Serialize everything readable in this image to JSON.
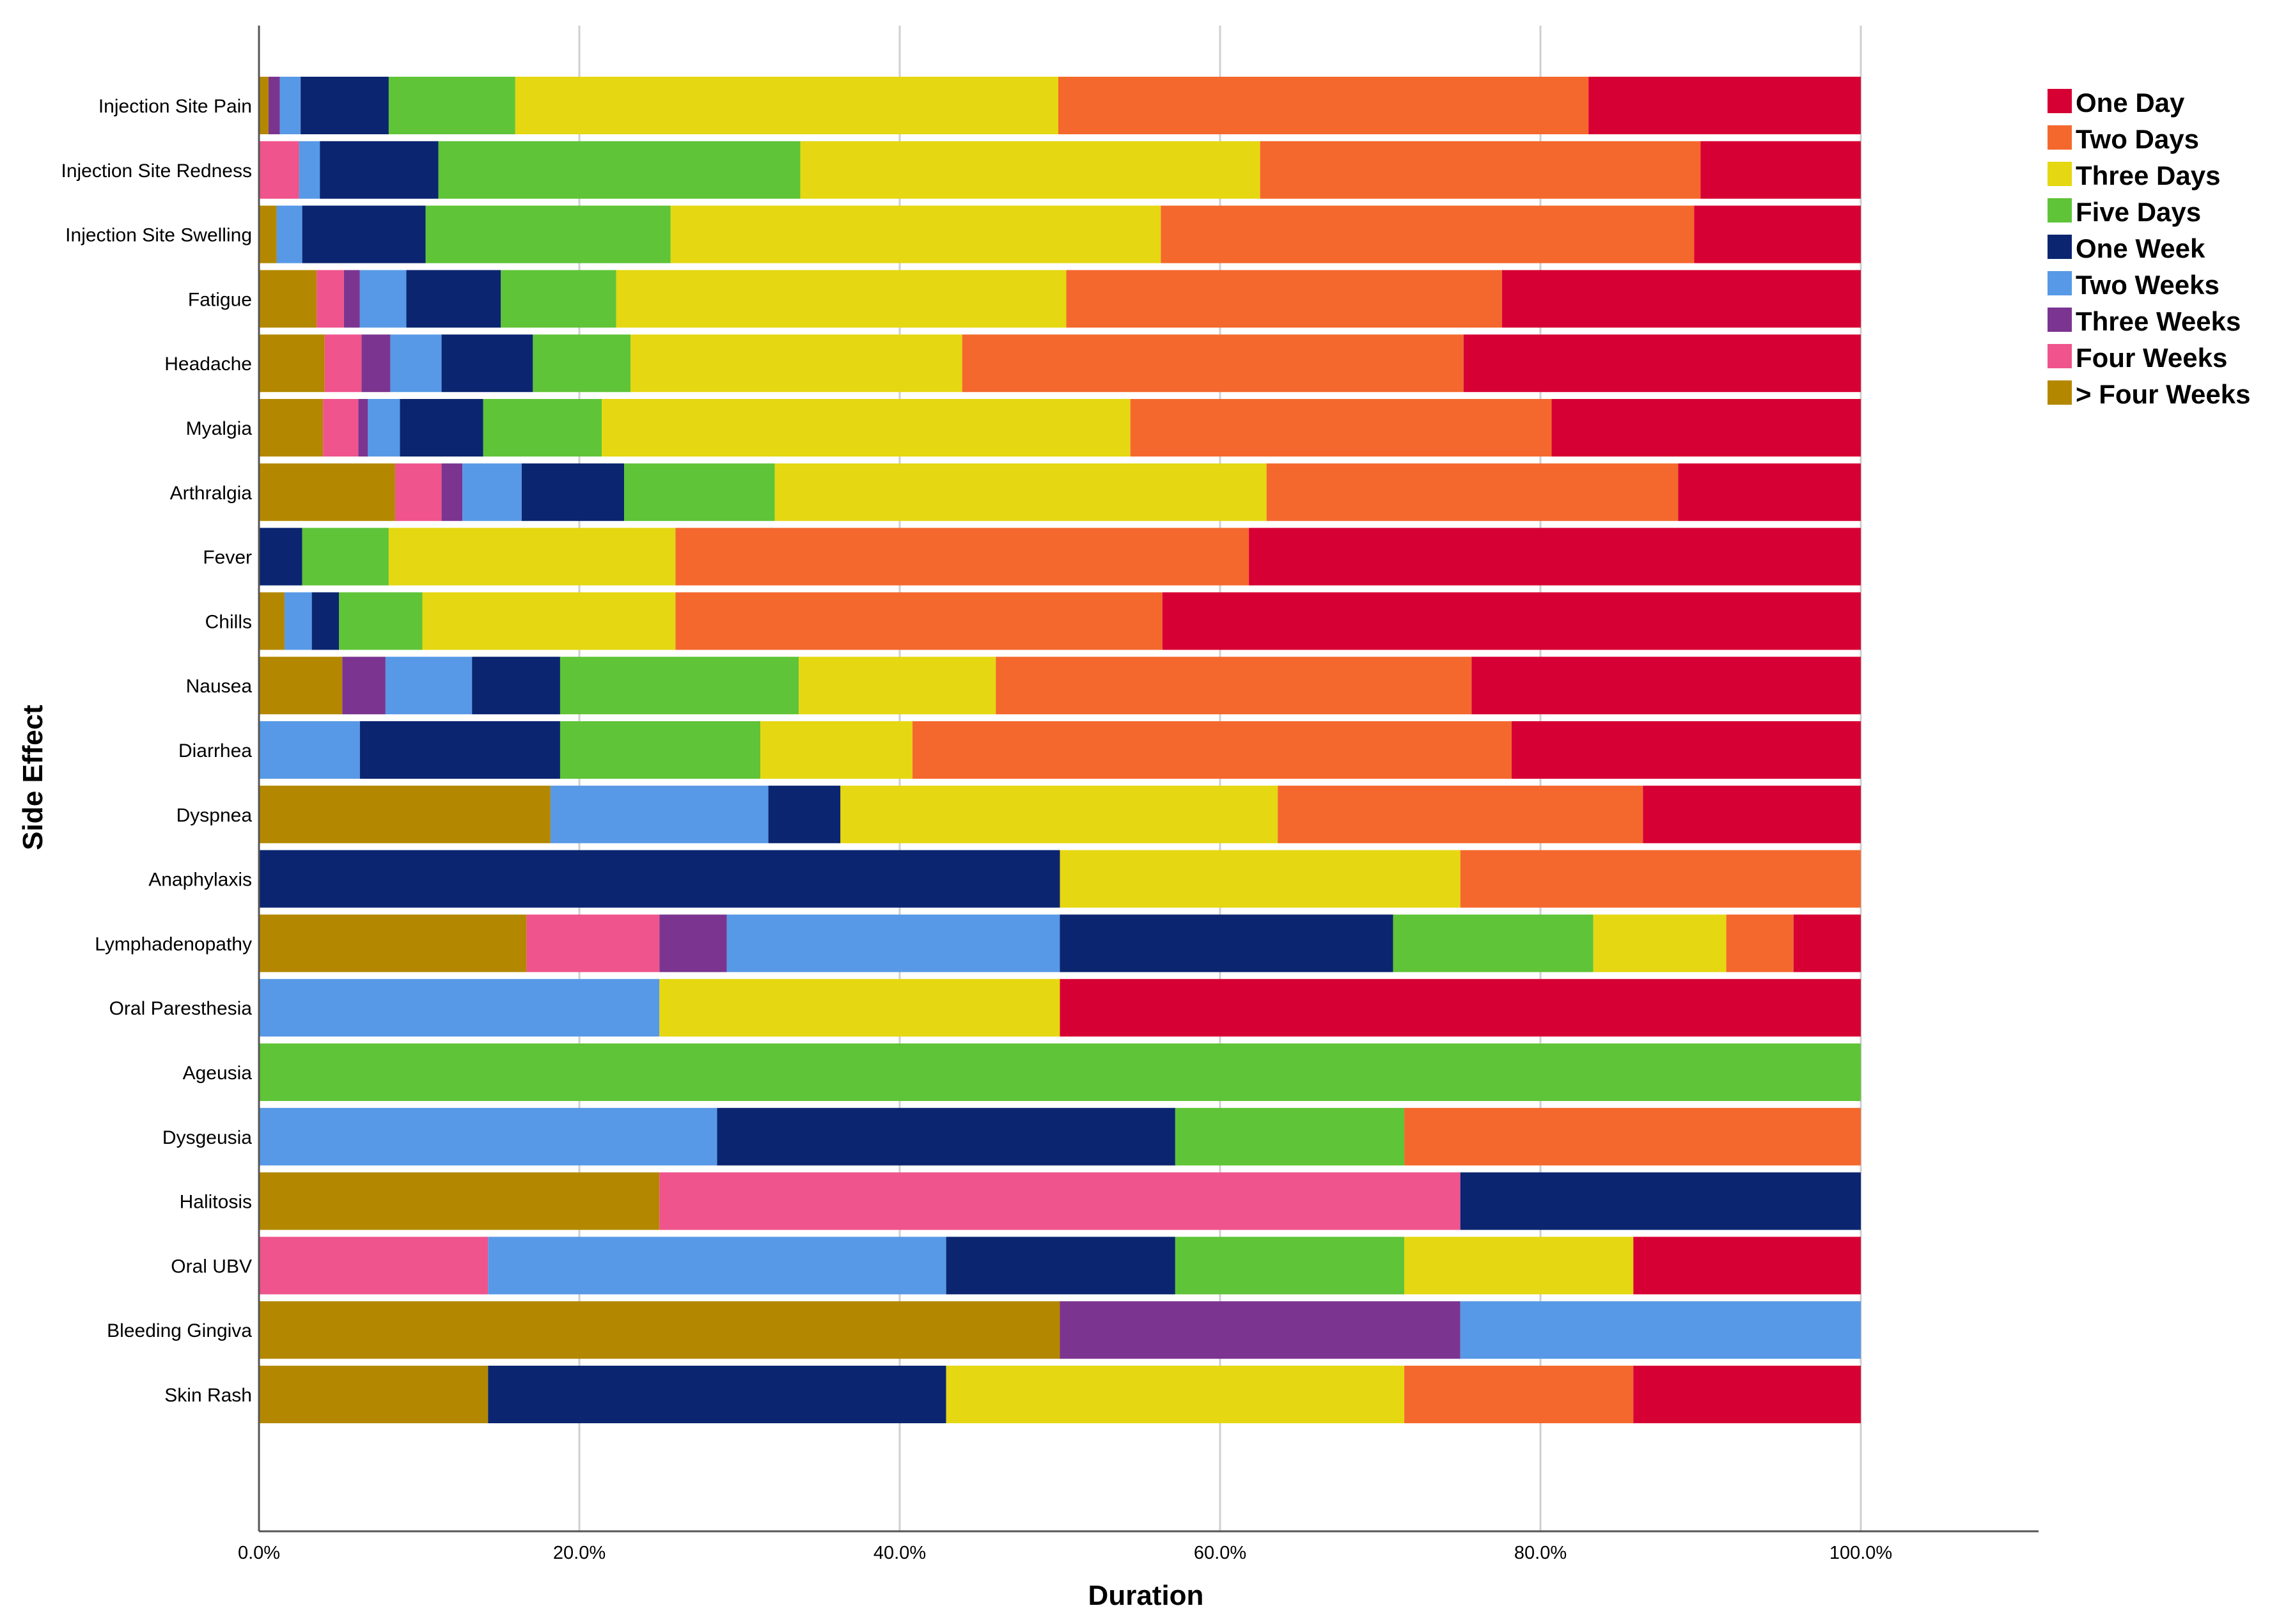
{
  "chart_data": {
    "type": "bar",
    "orientation": "horizontal",
    "stacked": "percent",
    "xlabel": "Duration",
    "ylabel": "Side Effect",
    "xlim": [
      0,
      1
    ],
    "x_ticks": [
      "0.0%",
      "20.0%",
      "40.0%",
      "60.0%",
      "80.0%",
      "100.0%"
    ],
    "grid": "vertical",
    "legend_position": "top-right",
    "categories": [
      "Injection Site Pain",
      "Injection Site Redness",
      "Injection Site Swelling",
      "Fatigue",
      "Headache",
      "Myalgia",
      "Arthralgia",
      "Fever",
      "Chills",
      "Nausea",
      "Diarrhea",
      "Dyspnea",
      "Anaphylaxis",
      "Lymphadenopathy",
      "Oral Paresthesia",
      "Ageusia",
      "Dysgeusia",
      "Halitosis",
      "Oral UBV",
      "Bleeding Gingiva",
      "Skin Rash"
    ],
    "stack_order": [
      "> Four Weeks",
      "Four Weeks",
      "Three Weeks",
      "Two Weeks",
      "One Week",
      "Five Days",
      "Three Days",
      "Two Days",
      "One Day"
    ],
    "series": [
      {
        "name": "One Day",
        "color": "#d70034",
        "values": [
          0.17,
          0.1,
          0.104,
          0.224,
          0.248,
          0.193,
          0.114,
          0.384,
          0.436,
          0.243,
          0.219,
          0.136,
          0.0,
          0.042,
          0.5,
          0.0,
          0.0,
          0.0,
          0.143,
          0.0,
          0.143
        ]
      },
      {
        "name": "Two Days",
        "color": "#f4682d",
        "values": [
          0.331,
          0.275,
          0.333,
          0.272,
          0.313,
          0.263,
          0.257,
          0.358,
          0.304,
          0.297,
          0.374,
          0.228,
          0.25,
          0.042,
          0.0,
          0.0,
          0.286,
          0.0,
          0.0,
          0.0,
          0.143
        ]
      },
      {
        "name": "Three Days",
        "color": "#e5d711",
        "values": [
          0.339,
          0.287,
          0.306,
          0.281,
          0.207,
          0.33,
          0.307,
          0.179,
          0.158,
          0.123,
          0.095,
          0.273,
          0.25,
          0.083,
          0.25,
          0.0,
          0.0,
          0.0,
          0.143,
          0.0,
          0.286
        ]
      },
      {
        "name": "Five Days",
        "color": "#5fc437",
        "values": [
          0.079,
          0.226,
          0.153,
          0.072,
          0.061,
          0.074,
          0.094,
          0.054,
          0.052,
          0.149,
          0.125,
          0.0,
          0.0,
          0.125,
          0.0,
          1.0,
          0.143,
          0.0,
          0.143,
          0.0,
          0.0
        ]
      },
      {
        "name": "One Week",
        "color": "#0b2570",
        "values": [
          0.055,
          0.074,
          0.077,
          0.059,
          0.057,
          0.052,
          0.064,
          0.027,
          0.017,
          0.055,
          0.125,
          0.045,
          0.5,
          0.208,
          0.0,
          0.0,
          0.286,
          0.25,
          0.143,
          0.0,
          0.286
        ]
      },
      {
        "name": "Two Weeks",
        "color": "#5799e6",
        "values": [
          0.013,
          0.013,
          0.016,
          0.029,
          0.032,
          0.02,
          0.037,
          0.0,
          0.017,
          0.054,
          0.063,
          0.136,
          0.0,
          0.208,
          0.25,
          0.0,
          0.286,
          0.0,
          0.286,
          0.25,
          0.0
        ]
      },
      {
        "name": "Three Weeks",
        "color": "#7b3590",
        "values": [
          0.007,
          0.0,
          0.0,
          0.01,
          0.018,
          0.006,
          0.013,
          0.0,
          0.0,
          0.027,
          0.0,
          0.0,
          0.0,
          0.042,
          0.0,
          0.0,
          0.0,
          0.0,
          0.0,
          0.25,
          0.0
        ]
      },
      {
        "name": "Four Weeks",
        "color": "#ef548c",
        "values": [
          0.0,
          0.025,
          0.0,
          0.017,
          0.023,
          0.022,
          0.029,
          0.0,
          0.0,
          0.0,
          0.0,
          0.0,
          0.0,
          0.083,
          0.0,
          0.0,
          0.0,
          0.5,
          0.143,
          0.0,
          0.0
        ]
      },
      {
        "name": "> Four Weeks",
        "color": "#b38800",
        "values": [
          0.006,
          0.0,
          0.011,
          0.036,
          0.041,
          0.04,
          0.085,
          0.0,
          0.016,
          0.052,
          0.0,
          0.182,
          0.0,
          0.167,
          0.0,
          0.0,
          0.0,
          0.25,
          0.0,
          0.5,
          0.143
        ]
      }
    ]
  }
}
